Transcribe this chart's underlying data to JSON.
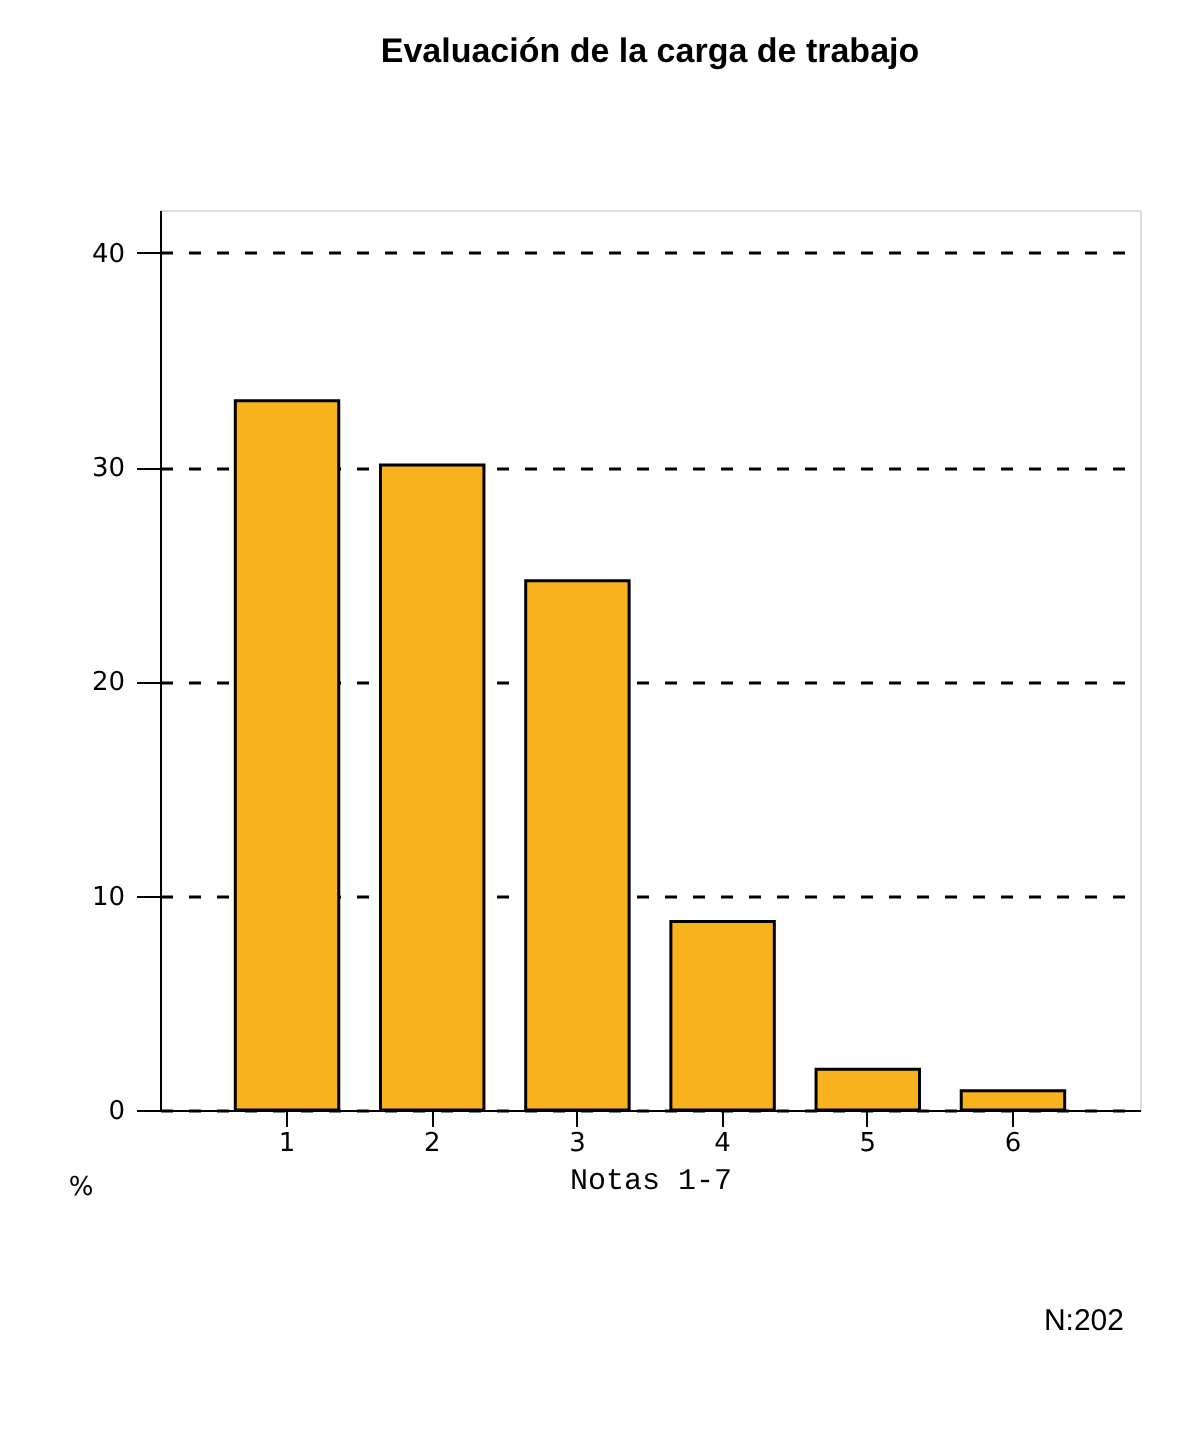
{
  "chart_data": {
    "type": "bar",
    "title": "Evaluación de la carga de trabajo",
    "xlabel": "Notas 1-7",
    "ylabel": "%",
    "categories": [
      "1",
      "2",
      "3",
      "4",
      "5",
      "6"
    ],
    "values": [
      33.1,
      30.1,
      24.7,
      8.8,
      1.9,
      0.9
    ],
    "color": "#f7b21e",
    "ylim": [
      0,
      42
    ],
    "yticks": [
      0,
      10,
      20,
      30,
      40
    ],
    "grid": "y",
    "annotations": [
      "N:202"
    ]
  }
}
